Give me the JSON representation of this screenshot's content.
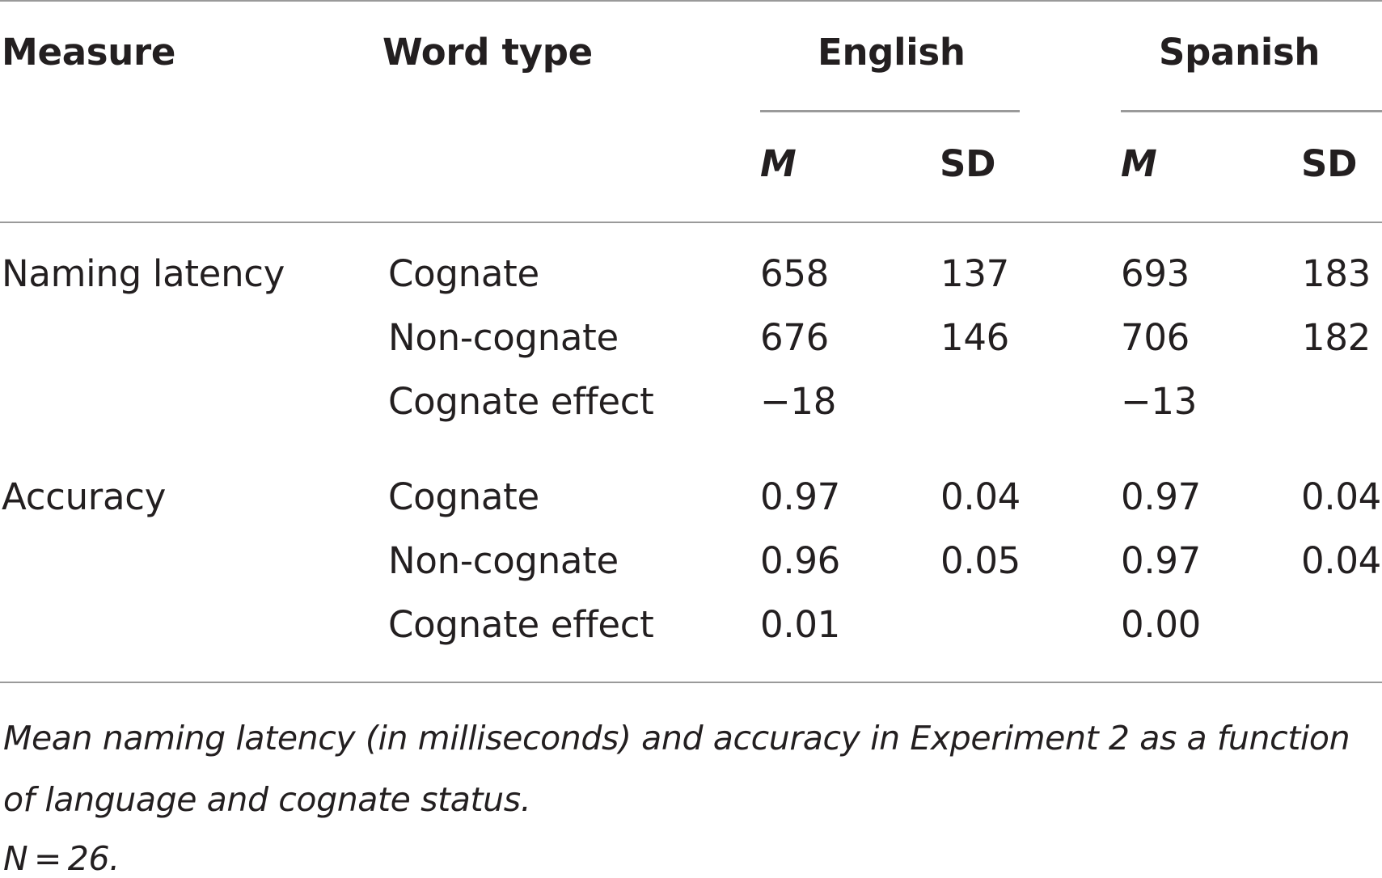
{
  "table": {
    "headers": {
      "measure": "Measure",
      "word_type": "Word type",
      "english": "English",
      "spanish": "Spanish",
      "english_m": "M",
      "english_sd": "SD",
      "spanish_m": "M",
      "spanish_sd": "SD"
    },
    "rows": [
      {
        "measure": "Naming latency",
        "word_type": "Cognate",
        "en_m": "658",
        "en_sd": "137",
        "es_m": "693",
        "es_sd": "183"
      },
      {
        "measure": "",
        "word_type": "Non-cognate",
        "en_m": "676",
        "en_sd": "146",
        "es_m": "706",
        "es_sd": "182"
      },
      {
        "measure": "",
        "word_type": "Cognate effect",
        "en_m": "−18",
        "en_sd": "",
        "es_m": "−13",
        "es_sd": ""
      },
      {
        "measure": "Accuracy",
        "word_type": "Cognate",
        "en_m": "0.97",
        "en_sd": "0.04",
        "es_m": "0.97",
        "es_sd": "0.04"
      },
      {
        "measure": "",
        "word_type": "Non-cognate",
        "en_m": "0.96",
        "en_sd": "0.05",
        "es_m": "0.97",
        "es_sd": "0.04"
      },
      {
        "measure": "",
        "word_type": "Cognate effect",
        "en_m": "0.01",
        "en_sd": "",
        "es_m": "0.00",
        "es_sd": ""
      }
    ]
  },
  "footnote": {
    "line1": "Mean naming latency (in milliseconds) and accuracy in Experiment 2 as a function",
    "line2": "of language and cognate status.",
    "line3": "N = 26."
  }
}
